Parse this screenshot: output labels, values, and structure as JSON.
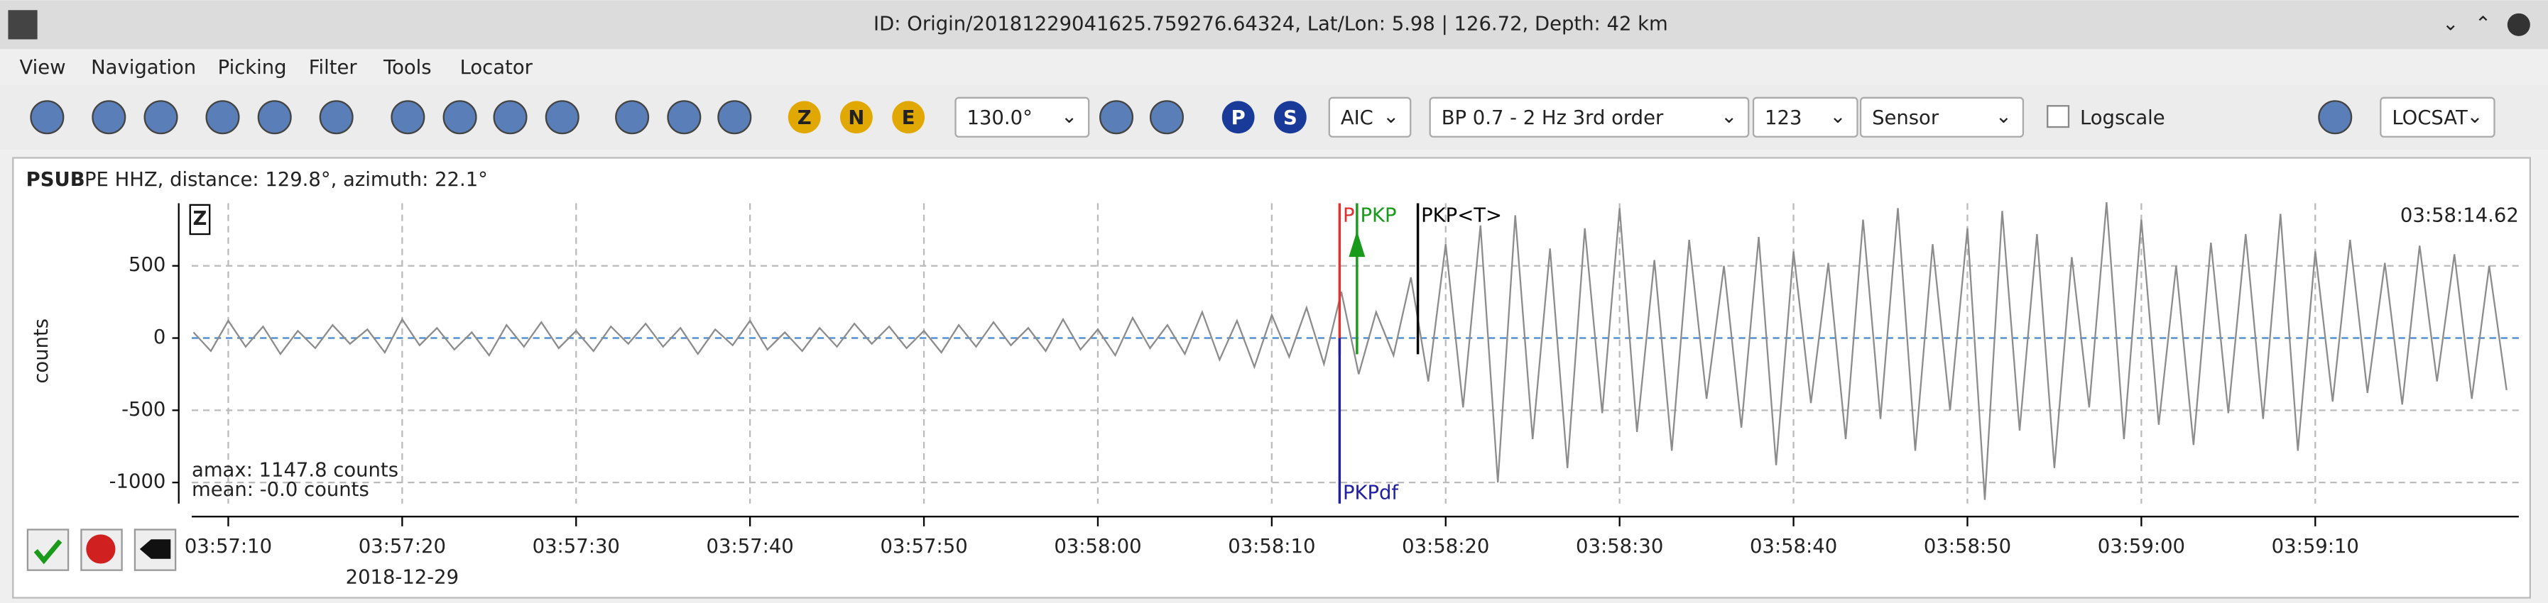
{
  "window_title": "ID: Origin/20181229041625.759276.64324, Lat/Lon: 5.98 | 126.72, Depth: 42 km",
  "menu": [
    "View",
    "Navigation",
    "Picking",
    "Filter",
    "Tools",
    "Locator"
  ],
  "toolbar": {
    "component_buttons": [
      "Z",
      "N",
      "E"
    ],
    "angle": "130.0°",
    "phase_buttons": [
      "P",
      "S"
    ],
    "picker": "AIC",
    "filter": "BP 0.7 - 2 Hz  3rd order",
    "stream": "123",
    "unit": "Sensor",
    "logscale": "Logscale",
    "locator": "LOCSAT"
  },
  "trace_header": {
    "station": "PSUB",
    "info": "PE  HHZ, distance: 129.8°, azimuth: 22.1°"
  },
  "chart_data": {
    "type": "line",
    "component": "Z",
    "cursor_time": "03:58:14.62",
    "ylabel": "counts",
    "amax": "amax: 1147.8 counts",
    "mean": "mean: -0.0 counts",
    "date": "2018-12-29",
    "ylim": [
      -1146,
      933
    ],
    "yticks": [
      500,
      0,
      -500,
      -1000
    ],
    "xlim": [
      14227.9,
      14361.7
    ],
    "xticks": [
      {
        "value": 14230,
        "label": "03:57:10"
      },
      {
        "value": 14240,
        "label": "03:57:20"
      },
      {
        "value": 14250,
        "label": "03:57:30"
      },
      {
        "value": 14260,
        "label": "03:57:40"
      },
      {
        "value": 14270,
        "label": "03:57:50"
      },
      {
        "value": 14280,
        "label": "03:58:00"
      },
      {
        "value": 14290,
        "label": "03:58:10"
      },
      {
        "value": 14300,
        "label": "03:58:20"
      },
      {
        "value": 14310,
        "label": "03:58:30"
      },
      {
        "value": 14320,
        "label": "03:58:40"
      },
      {
        "value": 14330,
        "label": "03:58:50"
      },
      {
        "value": 14340,
        "label": "03:59:00"
      },
      {
        "value": 14350,
        "label": "03:59:10"
      }
    ],
    "picks": [
      {
        "name": "P",
        "time": 14293.9,
        "color": "#e03030"
      },
      {
        "name": "PKP",
        "time": 14294.9,
        "color": "#1a9a1a"
      },
      {
        "name": "PKP<T>",
        "time": 14298.4,
        "color": "#000000"
      },
      {
        "name": "PKPdf",
        "time": 14293.9,
        "color": "#2020a0"
      }
    ],
    "series": [
      {
        "color": "#8c8c8c",
        "x": [
          14228,
          14229,
          14230,
          14231,
          14232,
          14233,
          14234,
          14235,
          14236,
          14237,
          14238,
          14239,
          14240,
          14241,
          14242,
          14243,
          14244,
          14245,
          14246,
          14247,
          14248,
          14249,
          14250,
          14251,
          14252,
          14253,
          14254,
          14255,
          14256,
          14257,
          14258,
          14259,
          14260,
          14261,
          14262,
          14263,
          14264,
          14265,
          14266,
          14267,
          14268,
          14269,
          14270,
          14271,
          14272,
          14273,
          14274,
          14275,
          14276,
          14277,
          14278,
          14279,
          14280,
          14281,
          14282,
          14283,
          14284,
          14285,
          14286,
          14287,
          14288,
          14289,
          14290,
          14291,
          14292,
          14293,
          14294,
          14295,
          14296,
          14297,
          14298,
          14299,
          14300,
          14301,
          14302,
          14303,
          14304,
          14305,
          14306,
          14307,
          14308,
          14309,
          14310,
          14311,
          14312,
          14313,
          14314,
          14315,
          14316,
          14317,
          14318,
          14319,
          14320,
          14321,
          14322,
          14323,
          14324,
          14325,
          14326,
          14327,
          14328,
          14329,
          14330,
          14331,
          14332,
          14333,
          14334,
          14335,
          14336,
          14337,
          14338,
          14339,
          14340,
          14341,
          14342,
          14343,
          14344,
          14345,
          14346,
          14347,
          14348,
          14349,
          14350,
          14351,
          14352,
          14353,
          14354,
          14355,
          14356,
          14357,
          14358,
          14359,
          14360,
          14361
        ],
        "values": [
          40,
          -90,
          120,
          -60,
          80,
          -110,
          50,
          -70,
          90,
          -40,
          60,
          -100,
          130,
          -50,
          70,
          -80,
          40,
          -120,
          90,
          -60,
          110,
          -70,
          50,
          -90,
          80,
          -40,
          100,
          -60,
          70,
          -110,
          60,
          -50,
          120,
          -80,
          40,
          -90,
          70,
          -60,
          100,
          -40,
          80,
          -70,
          50,
          -100,
          90,
          -60,
          110,
          -50,
          70,
          -90,
          130,
          -80,
          60,
          -120,
          140,
          -70,
          90,
          -110,
          180,
          -150,
          120,
          -200,
          160,
          -130,
          210,
          -180,
          320,
          -250,
          180,
          -120,
          420,
          -300,
          650,
          -480,
          780,
          -1000,
          850,
          -700,
          620,
          -900,
          760,
          -520,
          900,
          -650,
          540,
          -780,
          680,
          -420,
          500,
          -620,
          700,
          -880,
          600,
          -450,
          520,
          -700,
          820,
          -560,
          900,
          -780,
          650,
          -500,
          760,
          -1120,
          880,
          -640,
          720,
          -900,
          560,
          -480,
          940,
          -700,
          820,
          -600,
          500,
          -740,
          660,
          -520,
          720,
          -560,
          860,
          -780,
          600,
          -440,
          680,
          -380,
          520,
          -460,
          640,
          -300,
          580,
          -420,
          500,
          -360
        ]
      }
    ]
  }
}
